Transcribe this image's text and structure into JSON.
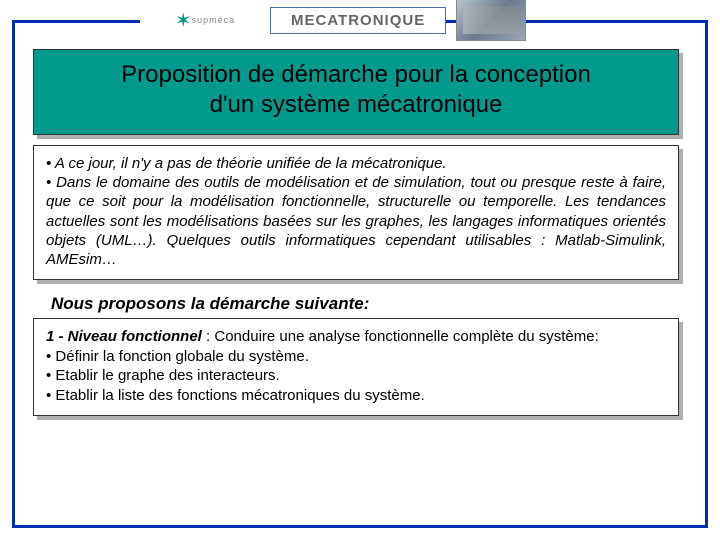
{
  "header": {
    "logo_text": "supméca",
    "chip_label": "MECATRONIQUE"
  },
  "title_panel": {
    "line1": "Proposition de démarche pour la conception",
    "line2": "d'un système mécatronique"
  },
  "intro_panel": {
    "bullet1": "• A ce jour, il n'y a pas de théorie unifiée de la mécatronique.",
    "bullet2": "• Dans le domaine des outils de modélisation et de simulation, tout ou presque reste à faire, que ce soit pour la modélisation fonctionnelle, structurelle ou temporelle. Les tendances actuelles sont les modélisations basées sur les graphes, les langages informatiques orientés objets (UML…). Quelques outils informatiques cependant utilisables : Matlab-Simulink, AMEsim…"
  },
  "subheading": "Nous proposons la démarche suivante:",
  "func_panel": {
    "lead": "1 - Niveau fonctionnel",
    "lead_tail": " : Conduire une analyse fonctionnelle complète du système:",
    "b1": "• Définir la fonction globale du système.",
    "b2": "• Etablir le graphe des interacteurs.",
    "b3": "• Etablir la liste des fonctions mécatroniques du système."
  },
  "colors": {
    "frame": "#002db3",
    "title_bg": "#009a8c",
    "shadow": "#b0b0b0",
    "chip_border": "#4a6fa5",
    "chip_text": "#666666"
  }
}
